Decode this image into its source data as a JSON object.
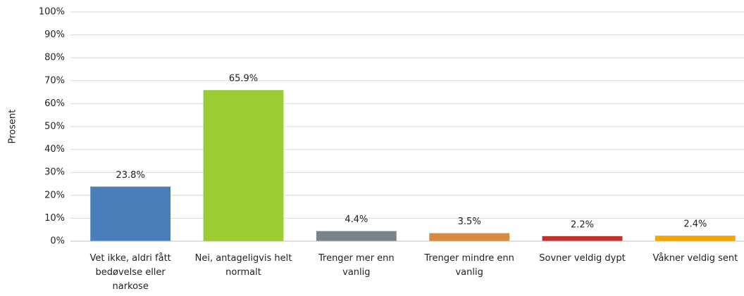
{
  "chart_data": {
    "type": "bar",
    "y_label": "Prosent",
    "categories": [
      "Vet ikke, aldri fått bedøvelse eller narkose",
      "Nei, antageligvis helt normalt",
      "Trenger mer enn vanlig",
      "Trenger mindre enn vanlig",
      "Sovner veldig dypt",
      "Våkner veldig sent"
    ],
    "values": [
      23.8,
      65.9,
      4.4,
      3.5,
      2.2,
      2.4
    ],
    "value_labels": [
      "23.8%",
      "65.9%",
      "4.4%",
      "3.5%",
      "2.2%",
      "2.4%"
    ],
    "colors": [
      "#4a7ebb",
      "#9acd32",
      "#77838f",
      "#d68b3f",
      "#c0312c",
      "#f6a500"
    ],
    "ylim": [
      0,
      100
    ],
    "yticks": [
      {
        "value": 0,
        "label": "0%"
      },
      {
        "value": 10,
        "label": "10%"
      },
      {
        "value": 20,
        "label": "20%"
      },
      {
        "value": 30,
        "label": "30%"
      },
      {
        "value": 40,
        "label": "40%"
      },
      {
        "value": 50,
        "label": "50%"
      },
      {
        "value": 60,
        "label": "60%"
      },
      {
        "value": 70,
        "label": "70%"
      },
      {
        "value": 80,
        "label": "80%"
      },
      {
        "value": 90,
        "label": "90%"
      },
      {
        "value": 100,
        "label": "100%"
      }
    ],
    "grid": true
  }
}
